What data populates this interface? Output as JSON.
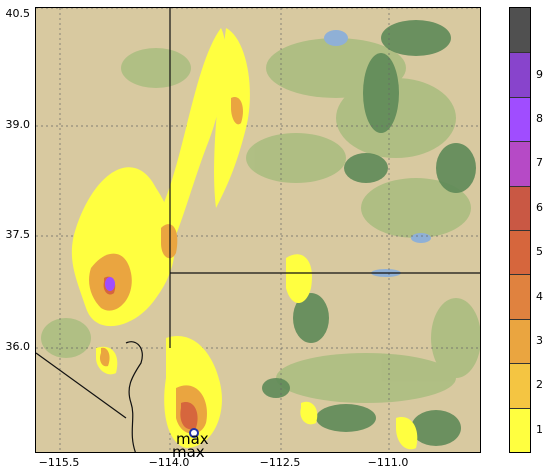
{
  "map": {
    "x_ticks": [
      "−115.5",
      "−114.0",
      "−112.5",
      "−111.0"
    ],
    "y_ticks": [
      "40.5",
      "39.0",
      "37.5",
      "36.0"
    ],
    "extent": {
      "lon_min": -115.62,
      "lon_max": -110.13,
      "lat_min": 35.0,
      "lat_max": 40.55
    },
    "labels": [
      "max",
      "max"
    ],
    "colors": {
      "terrain": "#d8c9a0",
      "lowland_green": "#a9bd7f",
      "forest": "#5f8a58",
      "water": "#8fb0d6",
      "border": "#111111"
    }
  },
  "colorbar": {
    "ticks": [
      "1",
      "2",
      "3",
      "4",
      "5",
      "6",
      "7",
      "8",
      "9"
    ],
    "colors": [
      "#ffff40",
      "#f4c542",
      "#eaa540",
      "#e0823f",
      "#d6663d",
      "#c95844",
      "#b64ac6",
      "#a04dff",
      "#8844cc",
      "#505050"
    ]
  }
}
